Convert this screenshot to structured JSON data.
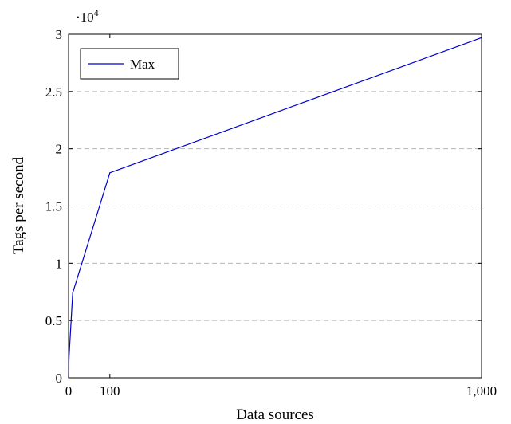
{
  "chart_data": {
    "type": "line",
    "xlabel": "Data sources",
    "ylabel": "Tags per second",
    "y_exponent_prefix": "·10",
    "y_exponent_power": "4",
    "xlim": [
      0,
      1000
    ],
    "ylim": [
      0,
      30000
    ],
    "x_ticks": [
      0,
      100,
      1000
    ],
    "x_tick_labels": [
      "0",
      "100",
      "1,000"
    ],
    "y_ticks": [
      0,
      5000,
      10000,
      15000,
      20000,
      25000,
      30000
    ],
    "y_tick_labels": [
      "0",
      "0.5",
      "1",
      "1.5",
      "2",
      "2.5",
      "3"
    ],
    "grid": "horizontal dashed",
    "legend_position": "top-left",
    "series": [
      {
        "name": "Max",
        "color": "#0000cc",
        "x": [
          0,
          1,
          10,
          100,
          1000
        ],
        "y": [
          0,
          1700,
          7400,
          17900,
          29700
        ]
      }
    ]
  }
}
